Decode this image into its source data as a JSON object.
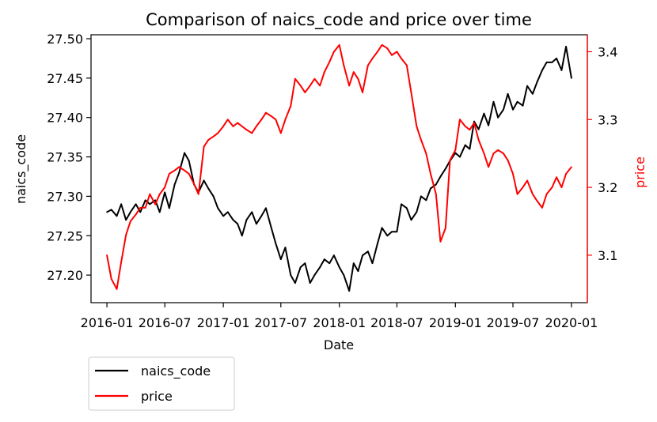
{
  "chart_data": {
    "type": "line",
    "title": "Comparison of naics_code and price over time",
    "xlabel": "Date",
    "ylabel_left": "naics_code",
    "ylabel_right": "price",
    "x_ticks": [
      "2016-01",
      "2016-07",
      "2017-01",
      "2017-07",
      "2018-01",
      "2018-07",
      "2019-01",
      "2019-07",
      "2020-01"
    ],
    "x_range": [
      "2015-11-12",
      "2020-02-20"
    ],
    "ylim_left": [
      27.165,
      27.505
    ],
    "ylim_right": [
      3.03,
      3.425
    ],
    "yticks_left": [
      "27.20",
      "27.25",
      "27.30",
      "27.35",
      "27.40",
      "27.45",
      "27.50"
    ],
    "yticks_right": [
      "3.1",
      "3.2",
      "3.3",
      "3.4"
    ],
    "grid": false,
    "legend_position": "below-left",
    "colors": {
      "naics_code": "#000000",
      "price": "#ff0000",
      "right_axis": "#ff0000"
    },
    "series": [
      {
        "name": "naics_code",
        "axis": "left",
        "x": [
          "2016-01-01",
          "2016-01-15",
          "2016-02-01",
          "2016-02-15",
          "2016-03-01",
          "2016-03-15",
          "2016-04-01",
          "2016-04-15",
          "2016-05-01",
          "2016-05-15",
          "2016-06-01",
          "2016-06-15",
          "2016-07-01",
          "2016-07-15",
          "2016-08-01",
          "2016-08-15",
          "2016-09-01",
          "2016-09-15",
          "2016-10-01",
          "2016-10-15",
          "2016-11-01",
          "2016-11-15",
          "2016-12-01",
          "2016-12-15",
          "2017-01-01",
          "2017-01-15",
          "2017-02-01",
          "2017-02-15",
          "2017-03-01",
          "2017-03-15",
          "2017-04-01",
          "2017-04-15",
          "2017-05-01",
          "2017-05-15",
          "2017-06-01",
          "2017-06-15",
          "2017-07-01",
          "2017-07-15",
          "2017-08-01",
          "2017-08-15",
          "2017-09-01",
          "2017-09-15",
          "2017-10-01",
          "2017-10-15",
          "2017-11-01",
          "2017-11-15",
          "2017-12-01",
          "2017-12-15",
          "2018-01-01",
          "2018-01-15",
          "2018-02-01",
          "2018-02-15",
          "2018-03-01",
          "2018-03-15",
          "2018-04-01",
          "2018-04-15",
          "2018-05-01",
          "2018-05-15",
          "2018-06-01",
          "2018-06-15",
          "2018-07-01",
          "2018-07-15",
          "2018-08-01",
          "2018-08-15",
          "2018-09-01",
          "2018-09-15",
          "2018-10-01",
          "2018-10-15",
          "2018-11-01",
          "2018-11-15",
          "2018-12-01",
          "2018-12-15",
          "2019-01-01",
          "2019-01-15",
          "2019-02-01",
          "2019-02-15",
          "2019-03-01",
          "2019-03-15",
          "2019-04-01",
          "2019-04-15",
          "2019-05-01",
          "2019-05-15",
          "2019-06-01",
          "2019-06-15",
          "2019-07-01",
          "2019-07-15",
          "2019-08-01",
          "2019-08-15",
          "2019-09-01",
          "2019-09-15",
          "2019-10-01",
          "2019-10-15",
          "2019-11-01",
          "2019-11-15",
          "2019-12-01",
          "2019-12-15",
          "2020-01-01"
        ],
        "values": [
          27.28,
          27.283,
          27.275,
          27.29,
          27.27,
          27.28,
          27.29,
          27.28,
          27.295,
          27.29,
          27.295,
          27.28,
          27.305,
          27.285,
          27.315,
          27.33,
          27.355,
          27.345,
          27.315,
          27.305,
          27.32,
          27.31,
          27.3,
          27.285,
          27.275,
          27.28,
          27.27,
          27.265,
          27.25,
          27.27,
          27.28,
          27.265,
          27.275,
          27.285,
          27.26,
          27.24,
          27.22,
          27.235,
          27.2,
          27.19,
          27.21,
          27.215,
          27.19,
          27.2,
          27.21,
          27.22,
          27.215,
          27.225,
          27.21,
          27.2,
          27.18,
          27.215,
          27.205,
          27.225,
          27.23,
          27.215,
          27.24,
          27.26,
          27.25,
          27.255,
          27.255,
          27.29,
          27.285,
          27.27,
          27.28,
          27.3,
          27.295,
          27.31,
          27.315,
          27.325,
          27.335,
          27.345,
          27.355,
          27.35,
          27.365,
          27.36,
          27.395,
          27.385,
          27.405,
          27.39,
          27.42,
          27.4,
          27.41,
          27.43,
          27.41,
          27.42,
          27.415,
          27.44,
          27.43,
          27.445,
          27.46,
          27.47,
          27.47,
          27.475,
          27.46,
          27.49,
          27.45
        ]
      },
      {
        "name": "price",
        "axis": "right",
        "x": [
          "2016-01-01",
          "2016-01-15",
          "2016-02-01",
          "2016-02-15",
          "2016-03-01",
          "2016-03-15",
          "2016-04-01",
          "2016-04-15",
          "2016-05-01",
          "2016-05-15",
          "2016-06-01",
          "2016-06-15",
          "2016-07-01",
          "2016-07-15",
          "2016-08-01",
          "2016-08-15",
          "2016-09-01",
          "2016-09-15",
          "2016-10-01",
          "2016-10-15",
          "2016-11-01",
          "2016-11-15",
          "2016-12-01",
          "2016-12-15",
          "2017-01-01",
          "2017-01-15",
          "2017-02-01",
          "2017-02-15",
          "2017-03-01",
          "2017-03-15",
          "2017-04-01",
          "2017-04-15",
          "2017-05-01",
          "2017-05-15",
          "2017-06-01",
          "2017-06-15",
          "2017-07-01",
          "2017-07-15",
          "2017-08-01",
          "2017-08-15",
          "2017-09-01",
          "2017-09-15",
          "2017-10-01",
          "2017-10-15",
          "2017-11-01",
          "2017-11-15",
          "2017-12-01",
          "2017-12-15",
          "2018-01-01",
          "2018-01-15",
          "2018-02-01",
          "2018-02-15",
          "2018-03-01",
          "2018-03-15",
          "2018-04-01",
          "2018-04-15",
          "2018-05-01",
          "2018-05-15",
          "2018-06-01",
          "2018-06-15",
          "2018-07-01",
          "2018-07-15",
          "2018-08-01",
          "2018-08-15",
          "2018-09-01",
          "2018-09-15",
          "2018-10-01",
          "2018-10-15",
          "2018-11-01",
          "2018-11-15",
          "2018-12-01",
          "2018-12-15",
          "2019-01-01",
          "2019-01-15",
          "2019-02-01",
          "2019-02-15",
          "2019-03-01",
          "2019-03-15",
          "2019-04-01",
          "2019-04-15",
          "2019-05-01",
          "2019-05-15",
          "2019-06-01",
          "2019-06-15",
          "2019-07-01",
          "2019-07-15",
          "2019-08-01",
          "2019-08-15",
          "2019-09-01",
          "2019-09-15",
          "2019-10-01",
          "2019-10-15",
          "2019-11-01",
          "2019-11-15",
          "2019-12-01",
          "2019-12-15",
          "2020-01-01"
        ],
        "values": [
          3.1,
          3.065,
          3.05,
          3.09,
          3.13,
          3.15,
          3.16,
          3.17,
          3.17,
          3.19,
          3.175,
          3.19,
          3.2,
          3.22,
          3.225,
          3.23,
          3.225,
          3.22,
          3.205,
          3.19,
          3.26,
          3.27,
          3.275,
          3.28,
          3.29,
          3.3,
          3.29,
          3.295,
          3.29,
          3.285,
          3.28,
          3.29,
          3.3,
          3.31,
          3.305,
          3.3,
          3.28,
          3.3,
          3.32,
          3.36,
          3.35,
          3.34,
          3.35,
          3.36,
          3.35,
          3.37,
          3.385,
          3.4,
          3.41,
          3.38,
          3.35,
          3.37,
          3.36,
          3.34,
          3.38,
          3.39,
          3.4,
          3.41,
          3.405,
          3.395,
          3.4,
          3.39,
          3.38,
          3.34,
          3.29,
          3.27,
          3.25,
          3.22,
          3.19,
          3.12,
          3.14,
          3.24,
          3.255,
          3.3,
          3.29,
          3.285,
          3.295,
          3.27,
          3.25,
          3.23,
          3.25,
          3.255,
          3.25,
          3.24,
          3.22,
          3.19,
          3.2,
          3.21,
          3.19,
          3.18,
          3.17,
          3.19,
          3.2,
          3.215,
          3.2,
          3.22,
          3.23
        ]
      }
    ]
  }
}
